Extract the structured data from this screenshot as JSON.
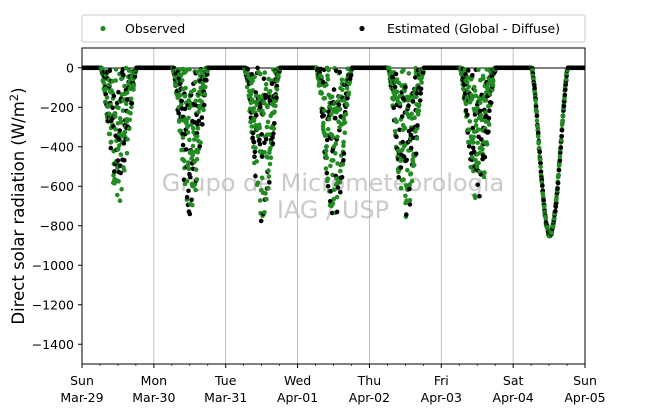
{
  "chart_data": {
    "type": "scatter",
    "title": "",
    "xlabel": "",
    "ylabel": "Direct solar radiation (W/m²)",
    "ylabel_main": "Direct solar radiation (W/m",
    "ylabel_sup": "2",
    "ylabel_close": ")",
    "ylim": [
      -1500,
      100
    ],
    "yticks": [
      0,
      -200,
      -400,
      -600,
      -800,
      -1000,
      -1200,
      -1400
    ],
    "xlim": [
      "2015-03-29",
      "2015-04-05"
    ],
    "x_ticks": [
      {
        "date": "2015-03-29",
        "day": "Sun",
        "label": "Mar-29"
      },
      {
        "date": "2015-03-30",
        "day": "Mon",
        "label": "Mar-30"
      },
      {
        "date": "2015-03-31",
        "day": "Tue",
        "label": "Mar-31"
      },
      {
        "date": "2015-04-01",
        "day": "Wed",
        "label": "Apr-01"
      },
      {
        "date": "2015-04-02",
        "day": "Thu",
        "label": "Apr-02"
      },
      {
        "date": "2015-04-03",
        "day": "Fri",
        "label": "Apr-03"
      },
      {
        "date": "2015-04-04",
        "day": "Sat",
        "label": "Apr-04"
      },
      {
        "date": "2015-04-05",
        "day": "Sun",
        "label": "Apr-05"
      }
    ],
    "grid": "vertical",
    "legend_position": "top, above plot",
    "series": [
      {
        "name": "Observed",
        "color": "#228b22",
        "marker": "dot"
      },
      {
        "name": "Estimated (Global - Diffuse)",
        "color": "#000000",
        "marker": "dot"
      }
    ],
    "daily_min": [
      {
        "date": "2015-03-29",
        "observed_min": -690,
        "estimated_min": -610
      },
      {
        "date": "2015-03-30",
        "observed_min": -740,
        "estimated_min": -760
      },
      {
        "date": "2015-03-31",
        "observed_min": -770,
        "estimated_min": -790
      },
      {
        "date": "2015-04-01",
        "observed_min": -770,
        "estimated_min": -780
      },
      {
        "date": "2015-04-02",
        "observed_min": -760,
        "estimated_min": -800
      },
      {
        "date": "2015-04-03",
        "observed_min": -690,
        "estimated_min": -660
      },
      {
        "date": "2015-04-04",
        "observed_min": -845,
        "estimated_min": -845
      }
    ],
    "watermark": [
      "Grupo de Micrometeorologia",
      "IAG / USP"
    ]
  }
}
